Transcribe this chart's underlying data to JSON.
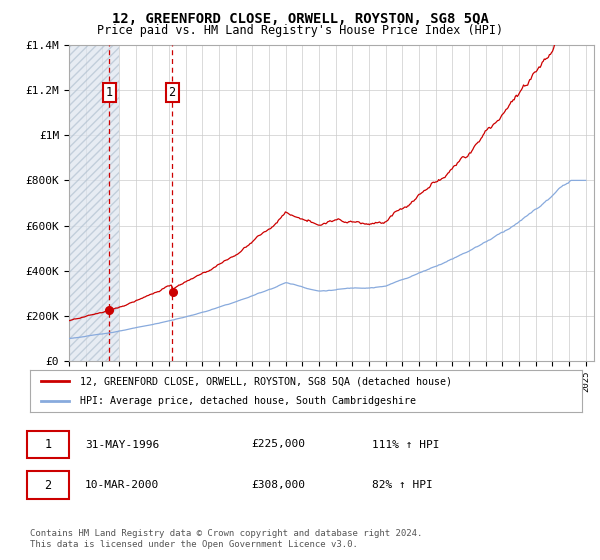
{
  "title": "12, GREENFORD CLOSE, ORWELL, ROYSTON, SG8 5QA",
  "subtitle": "Price paid vs. HM Land Registry's House Price Index (HPI)",
  "ylim": [
    0,
    1400000
  ],
  "yticks": [
    0,
    200000,
    400000,
    600000,
    800000,
    1000000,
    1200000,
    1400000
  ],
  "ytick_labels": [
    "£0",
    "£200K",
    "£400K",
    "£600K",
    "£800K",
    "£1M",
    "£1.2M",
    "£1.4M"
  ],
  "xlim_start": 1994,
  "xlim_end": 2025.5,
  "hatch_end_year": 1997.0,
  "purchase1_year": 1996.42,
  "purchase1_price": 225000,
  "purchase2_year": 2000.19,
  "purchase2_price": 308000,
  "property_color": "#cc0000",
  "hpi_color": "#88aadd",
  "legend_property": "12, GREENFORD CLOSE, ORWELL, ROYSTON, SG8 5QA (detached house)",
  "legend_hpi": "HPI: Average price, detached house, South Cambridgeshire",
  "table_rows": [
    {
      "num": "1",
      "date": "31-MAY-1996",
      "price": "£225,000",
      "hpi": "111% ↑ HPI"
    },
    {
      "num": "2",
      "date": "10-MAR-2000",
      "price": "£308,000",
      "hpi": "82% ↑ HPI"
    }
  ],
  "footer": "Contains HM Land Registry data © Crown copyright and database right 2024.\nThis data is licensed under the Open Government Licence v3.0.",
  "plot_background": "#ffffff"
}
